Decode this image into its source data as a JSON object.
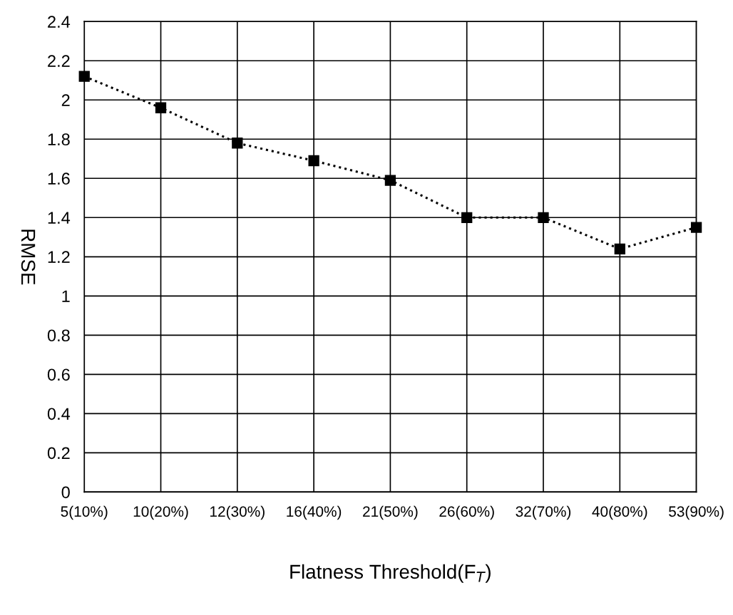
{
  "chart_data": {
    "type": "line",
    "xlabel": "Flatness Threshold(F$_{T}$)",
    "ylabel": "RMSE",
    "categories": [
      "5(10%)",
      "10(20%)",
      "12(30%)",
      "16(40%)",
      "21(50%)",
      "26(60%)",
      "32(70%)",
      "40(80%)",
      "53(90%)"
    ],
    "series": [
      {
        "color": "#000000",
        "values": [
          2.12,
          1.96,
          1.78,
          1.69,
          1.59,
          1.4,
          1.4,
          1.24,
          1.35
        ]
      }
    ],
    "ylim": [
      0,
      2.4
    ],
    "yticks": [
      0,
      0.2,
      0.4,
      0.6,
      0.8,
      1,
      1.2,
      1.4,
      1.6,
      1.8,
      2,
      2.2,
      2.4
    ],
    "grid": true,
    "marker": "square",
    "line_style": "dotted"
  }
}
